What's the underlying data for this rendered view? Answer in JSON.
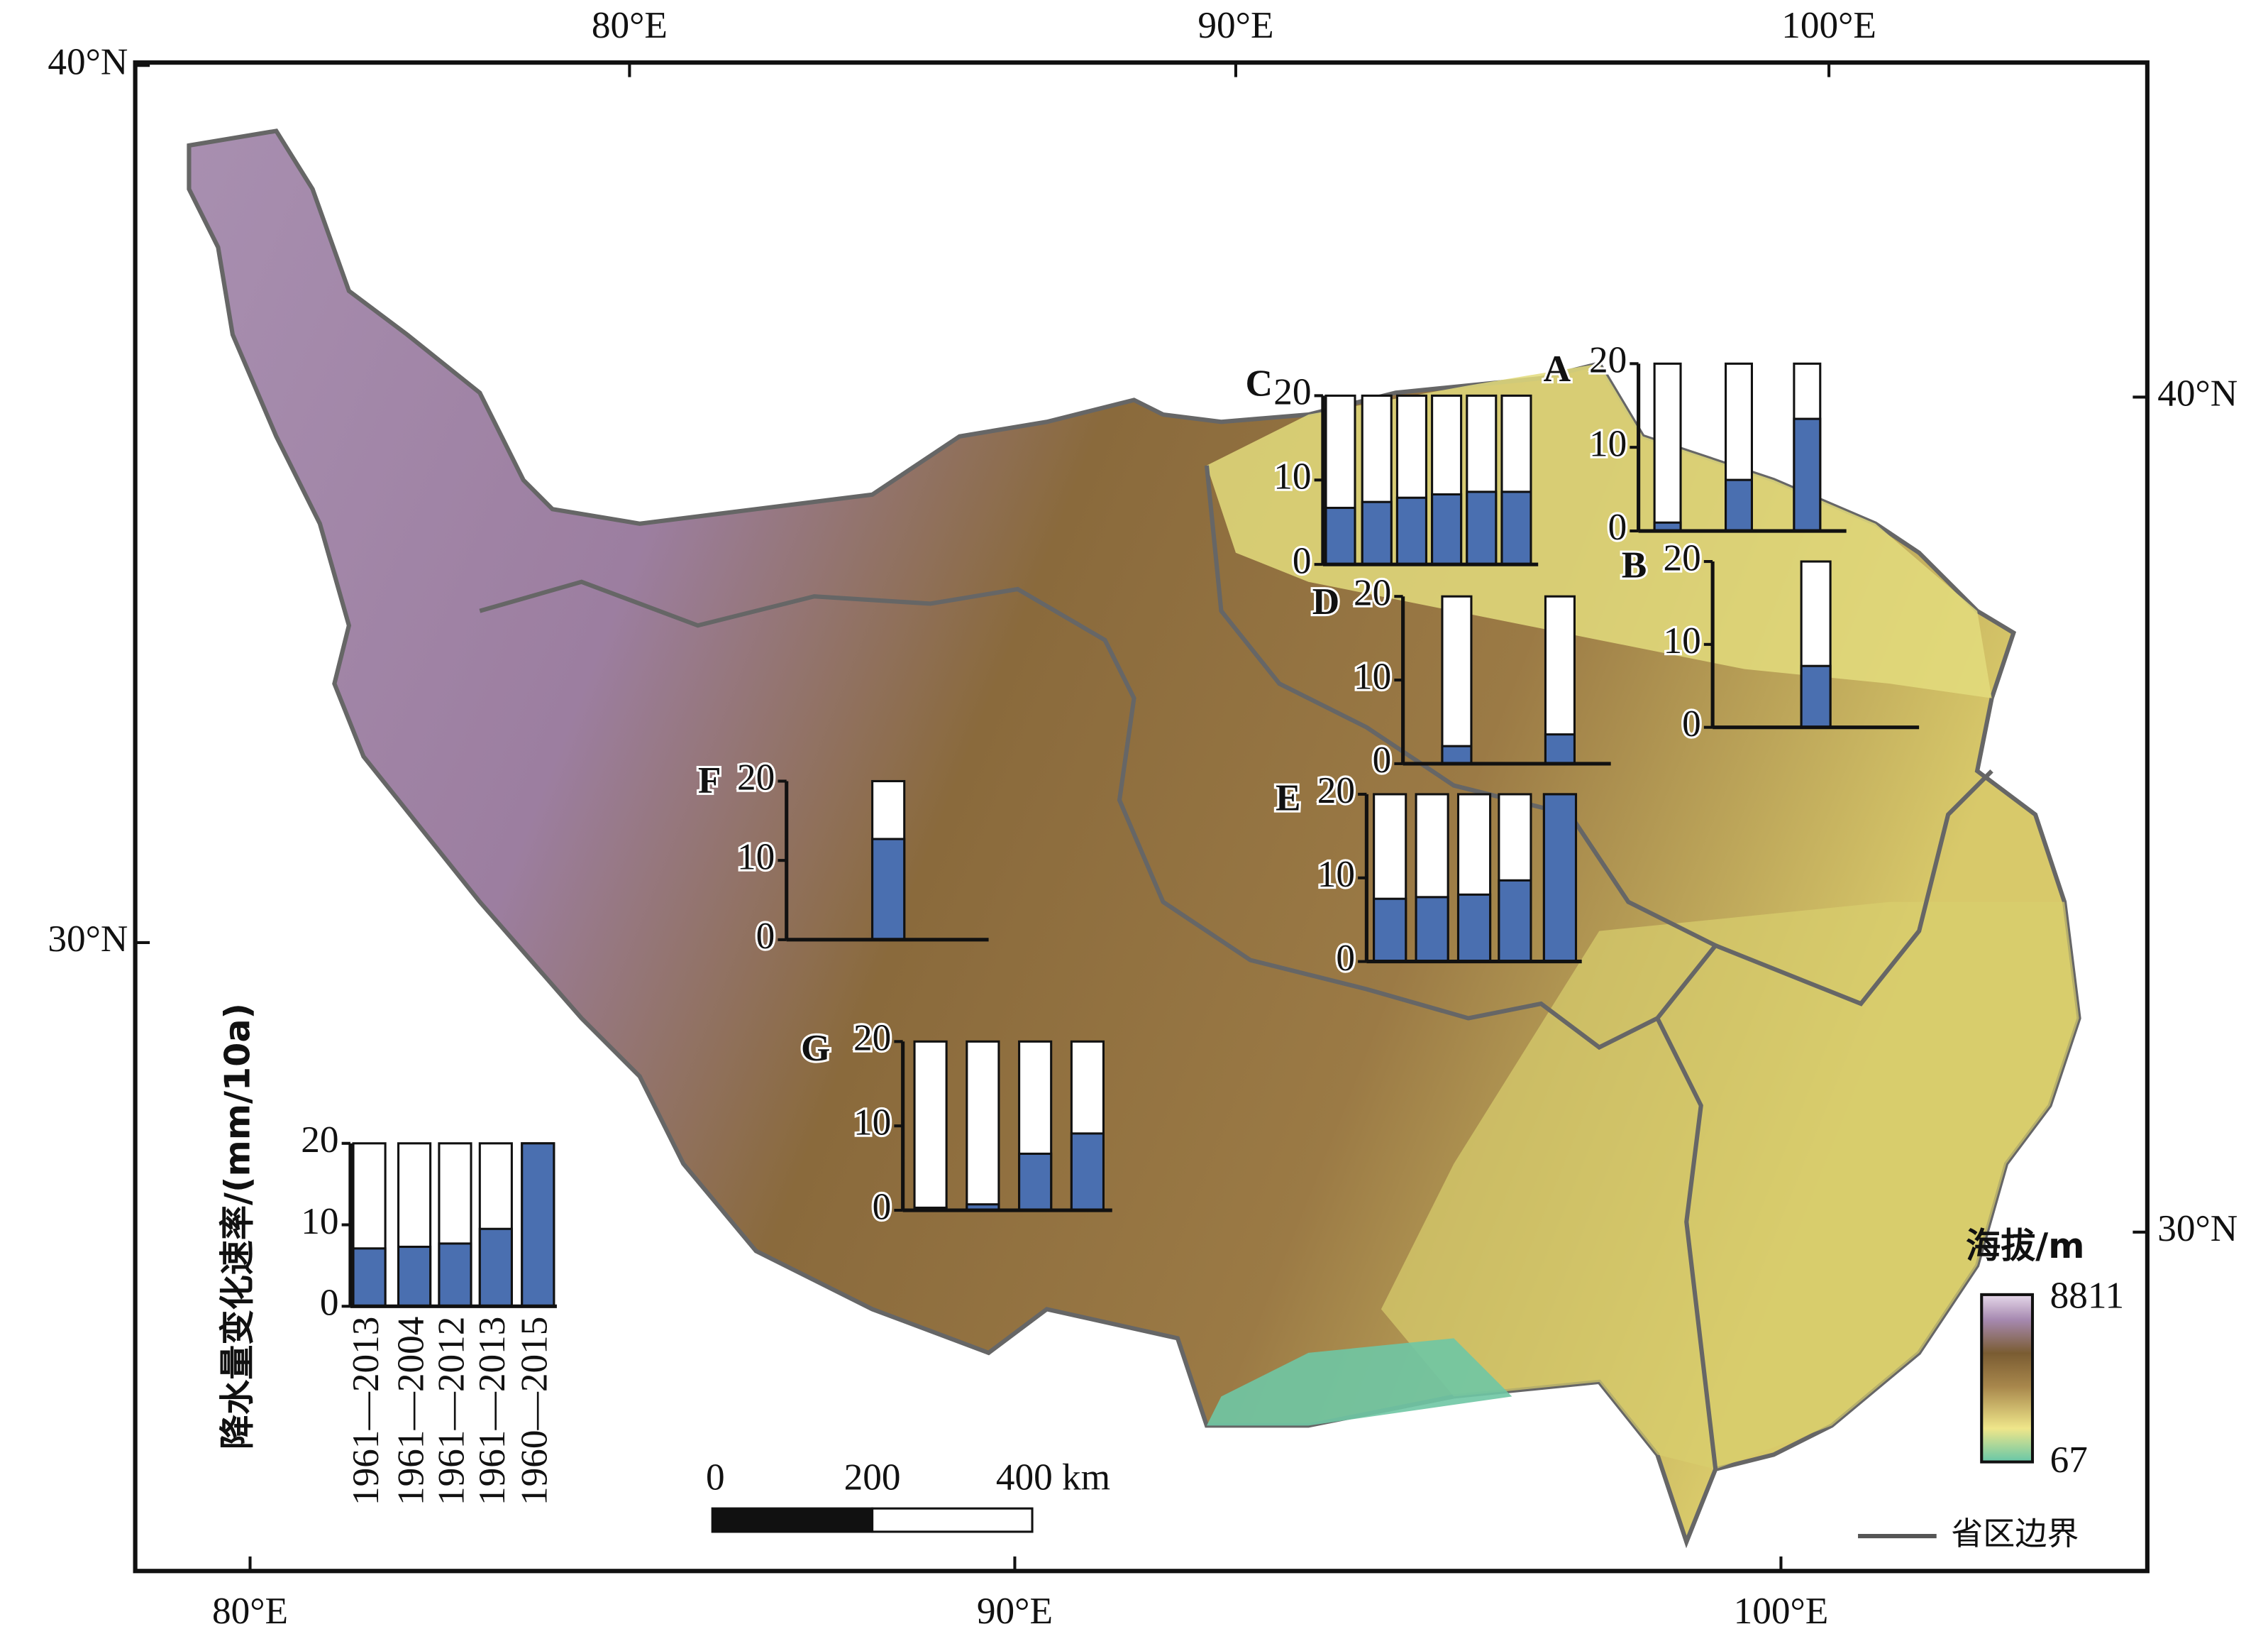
{
  "axes": {
    "top": [
      "80°E",
      "90°E",
      "100°E"
    ],
    "bottom": [
      "80°E",
      "90°E",
      "100°E"
    ],
    "left": [
      "40°N",
      "30°N"
    ],
    "right": [
      "40°N",
      "30°N"
    ]
  },
  "insets": [
    {
      "label": "C",
      "values": [
        6.7,
        7.4,
        7.9,
        8.3,
        8.6,
        8.6
      ],
      "ylim": [
        0,
        20
      ],
      "yticks": [
        0,
        10,
        20
      ]
    },
    {
      "label": "A",
      "values": [
        1.0,
        6.1,
        13.4
      ],
      "ylim": [
        0,
        20
      ],
      "yticks": [
        0,
        10,
        20
      ]
    },
    {
      "label": "B",
      "values": [
        7.4
      ],
      "ylim": [
        0,
        20
      ],
      "yticks": [
        0,
        10,
        20
      ]
    },
    {
      "label": "D",
      "values": [
        2.1,
        3.5
      ],
      "ylim": [
        0,
        20
      ],
      "yticks": [
        0,
        10,
        20
      ]
    },
    {
      "label": "E",
      "values": [
        7.5,
        7.7,
        8.0,
        9.7,
        20
      ],
      "ylim": [
        0,
        20
      ],
      "yticks": [
        0,
        10,
        20
      ]
    },
    {
      "label": "F",
      "values": [
        12.7
      ],
      "ylim": [
        0,
        20
      ],
      "yticks": [
        0,
        10,
        20
      ]
    },
    {
      "label": "G",
      "values": [
        0.3,
        0.7,
        6.7,
        9.1
      ],
      "ylim": [
        0,
        20
      ],
      "yticks": [
        0,
        10,
        20
      ]
    }
  ],
  "legend_chart": {
    "type": "bar",
    "y_label": "降水量变化速率/(mm/10a)",
    "categories": [
      "1961—2013",
      "1961—2004",
      "1961—2012",
      "1961—2013",
      "1960—2015"
    ],
    "values": [
      7.1,
      7.3,
      7.7,
      9.5,
      20
    ],
    "ylim": [
      0,
      20
    ],
    "yticks": [
      0,
      10,
      20
    ]
  },
  "scale_bar": {
    "labels": [
      "0",
      "200",
      "400 km"
    ]
  },
  "elevation_legend": {
    "title": "海拔/m",
    "max": "8811",
    "min": "67"
  },
  "boundary_legend": "省区边界"
}
